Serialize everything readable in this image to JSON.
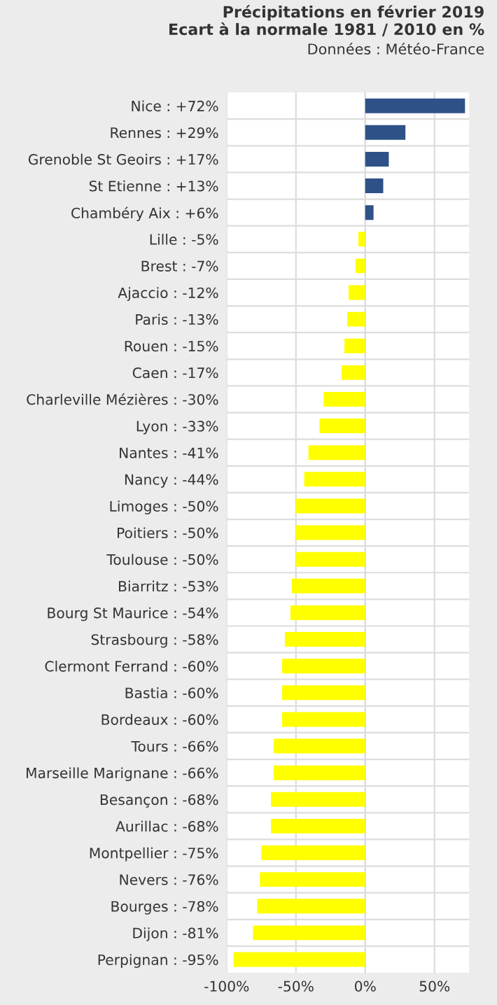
{
  "chart_data": {
    "type": "bar",
    "orientation": "horizontal",
    "title": "Précipitations en février 2019\nEcart à la normale 1981 / 2010 en %",
    "subtitle": "Données : Météo-France",
    "categories": [
      "Nice : +72%",
      "Rennes : +29%",
      "Grenoble St Geoirs : +17%",
      "St Etienne : +13%",
      "Chambéry Aix : +6%",
      "Lille : -5%",
      "Brest : -7%",
      "Ajaccio : -12%",
      "Paris : -13%",
      "Rouen : -15%",
      "Caen : -17%",
      "Charleville Mézières : -30%",
      "Lyon : -33%",
      "Nantes : -41%",
      "Nancy : -44%",
      "Limoges : -50%",
      "Poitiers : -50%",
      "Toulouse : -50%",
      "Biarritz : -53%",
      "Bourg St Maurice : -54%",
      "Strasbourg : -58%",
      "Clermont Ferrand : -60%",
      "Bastia : -60%",
      "Bordeaux : -60%",
      "Tours : -66%",
      "Marseille Marignane : -66%",
      "Besançon : -68%",
      "Aurillac : -68%",
      "Montpellier : -75%",
      "Nevers : -76%",
      "Bourges : -78%",
      "Dijon : -81%",
      "Perpignan : -95%"
    ],
    "values": [
      72,
      29,
      17,
      13,
      6,
      -5,
      -7,
      -12,
      -13,
      -15,
      -17,
      -30,
      -33,
      -41,
      -44,
      -50,
      -50,
      -50,
      -53,
      -54,
      -58,
      -60,
      -60,
      -60,
      -66,
      -66,
      -68,
      -68,
      -75,
      -76,
      -78,
      -81,
      -95
    ],
    "colors": [
      "#2e5188",
      "#2e5188",
      "#2e5188",
      "#2e5188",
      "#2e5188",
      "#ffff00",
      "#ffff00",
      "#ffff00",
      "#ffff00",
      "#ffff00",
      "#ffff00",
      "#ffff00",
      "#ffff00",
      "#ffff00",
      "#ffff00",
      "#ffff00",
      "#ffff00",
      "#ffff00",
      "#ffff00",
      "#ffff00",
      "#ffff00",
      "#ffff00",
      "#ffff00",
      "#ffff00",
      "#ffff00",
      "#ffff00",
      "#ffff00",
      "#ffff00",
      "#ffff00",
      "#ffff00",
      "#ffff00",
      "#ffff00",
      "#ffff00"
    ],
    "xlim": [
      -100,
      75
    ],
    "xticks": [
      {
        "value": -100,
        "label": "-100%"
      },
      {
        "value": -50,
        "label": "-50%"
      },
      {
        "value": 0,
        "label": "0%"
      },
      {
        "value": 50,
        "label": "50%"
      }
    ],
    "grid": true
  }
}
